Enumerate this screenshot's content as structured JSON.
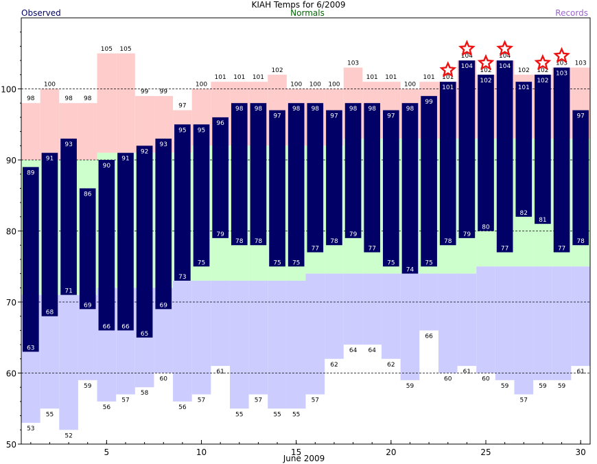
{
  "chart_data": {
    "type": "bar",
    "title": "KIAH Temps for 6/2009",
    "xlabel": "June 2009",
    "ylabel": "",
    "ylim": [
      50,
      110
    ],
    "xlim": [
      0.5,
      30.5
    ],
    "yticks": [
      50,
      60,
      70,
      80,
      90,
      100
    ],
    "xticks": [
      5,
      10,
      15,
      20,
      25,
      30
    ],
    "grid": "dashed at 60, 70, 80, 90, 100",
    "legend": [
      "Observed",
      "Normals",
      "Records"
    ],
    "legend_placement": "top",
    "colors": {
      "observed": "#000066",
      "normals": "#ccffcc",
      "record_high_band": "#ffcccc",
      "record_low_band": "#ccccff",
      "normals_text": "#006600",
      "records_text": "#9966cc",
      "star": "#ee1111"
    },
    "days": [
      1,
      2,
      3,
      4,
      5,
      6,
      7,
      8,
      9,
      10,
      11,
      12,
      13,
      14,
      15,
      16,
      17,
      18,
      19,
      20,
      21,
      22,
      23,
      24,
      25,
      26,
      27,
      28,
      29,
      30
    ],
    "observed_high": [
      89,
      91,
      93,
      86,
      90,
      91,
      92,
      93,
      95,
      95,
      96,
      98,
      98,
      97,
      98,
      98,
      97,
      98,
      98,
      97,
      98,
      99,
      101,
      104,
      102,
      104,
      101,
      102,
      103,
      97
    ],
    "observed_low": [
      63,
      68,
      71,
      69,
      66,
      66,
      65,
      69,
      73,
      75,
      79,
      78,
      78,
      75,
      75,
      77,
      78,
      79,
      77,
      75,
      74,
      75,
      78,
      79,
      80,
      77,
      82,
      81,
      77,
      78
    ],
    "normal_high": [
      90,
      90,
      90,
      90,
      91,
      91,
      91,
      91,
      91,
      92,
      92,
      92,
      92,
      92,
      92,
      92,
      92,
      93,
      93,
      93,
      93,
      93,
      93,
      93,
      93,
      93,
      93,
      93,
      93,
      93
    ],
    "normal_low": [
      71,
      71,
      71,
      71,
      72,
      72,
      72,
      72,
      73,
      73,
      73,
      73,
      73,
      73,
      73,
      74,
      74,
      74,
      74,
      74,
      74,
      74,
      74,
      74,
      75,
      75,
      75,
      75,
      75,
      75
    ],
    "record_high": [
      98,
      100,
      98,
      98,
      105,
      105,
      99,
      99,
      97,
      100,
      101,
      101,
      101,
      102,
      100,
      100,
      100,
      103,
      101,
      101,
      100,
      101,
      101,
      104,
      102,
      104,
      102,
      102,
      103,
      103
    ],
    "record_low": [
      53,
      55,
      52,
      59,
      56,
      57,
      58,
      60,
      56,
      57,
      61,
      55,
      57,
      55,
      55,
      57,
      62,
      64,
      64,
      62,
      59,
      66,
      60,
      61,
      60,
      59,
      57,
      59,
      59,
      61
    ],
    "record_high_labels": [
      "98",
      "100",
      "98",
      "98",
      "105",
      "105",
      "99",
      "99",
      "97",
      "100",
      "101",
      "101",
      "101",
      "102",
      "100",
      "100",
      "100",
      "103",
      "101",
      "101",
      "100",
      "101",
      "101",
      "104",
      "102",
      "104",
      "102",
      "102",
      "103",
      "103"
    ],
    "record_low_labels": [
      "53",
      "55",
      "52",
      "59",
      "56",
      "57",
      "58",
      "60",
      "56",
      "57",
      "61",
      "55",
      "57",
      "55",
      "55",
      "57",
      "62",
      "64",
      "64",
      "62",
      "59",
      "66",
      "60",
      "61",
      "60",
      "59",
      "57",
      "59",
      "59",
      "61"
    ],
    "observed_high_labels": [
      "89",
      "91",
      "93",
      "86",
      "90",
      "91",
      "92",
      "93",
      "95",
      "95",
      "96",
      "98",
      "98",
      "97",
      "98",
      "98",
      "97",
      "98",
      "98",
      "97",
      "98",
      "99",
      "101",
      "104",
      "102",
      "104",
      "101",
      "102",
      "103",
      "97"
    ],
    "observed_low_labels": [
      "63",
      "68",
      "71",
      "69",
      "66",
      "66",
      "65",
      "69",
      "73",
      "75",
      "79",
      "78",
      "78",
      "75",
      "75",
      "77",
      "78",
      "79",
      "77",
      "75",
      "74",
      "75",
      "78",
      "79",
      "80",
      "77",
      "82",
      "81",
      "77",
      "78"
    ],
    "record_days": [
      23,
      24,
      25,
      26,
      28,
      29
    ]
  }
}
